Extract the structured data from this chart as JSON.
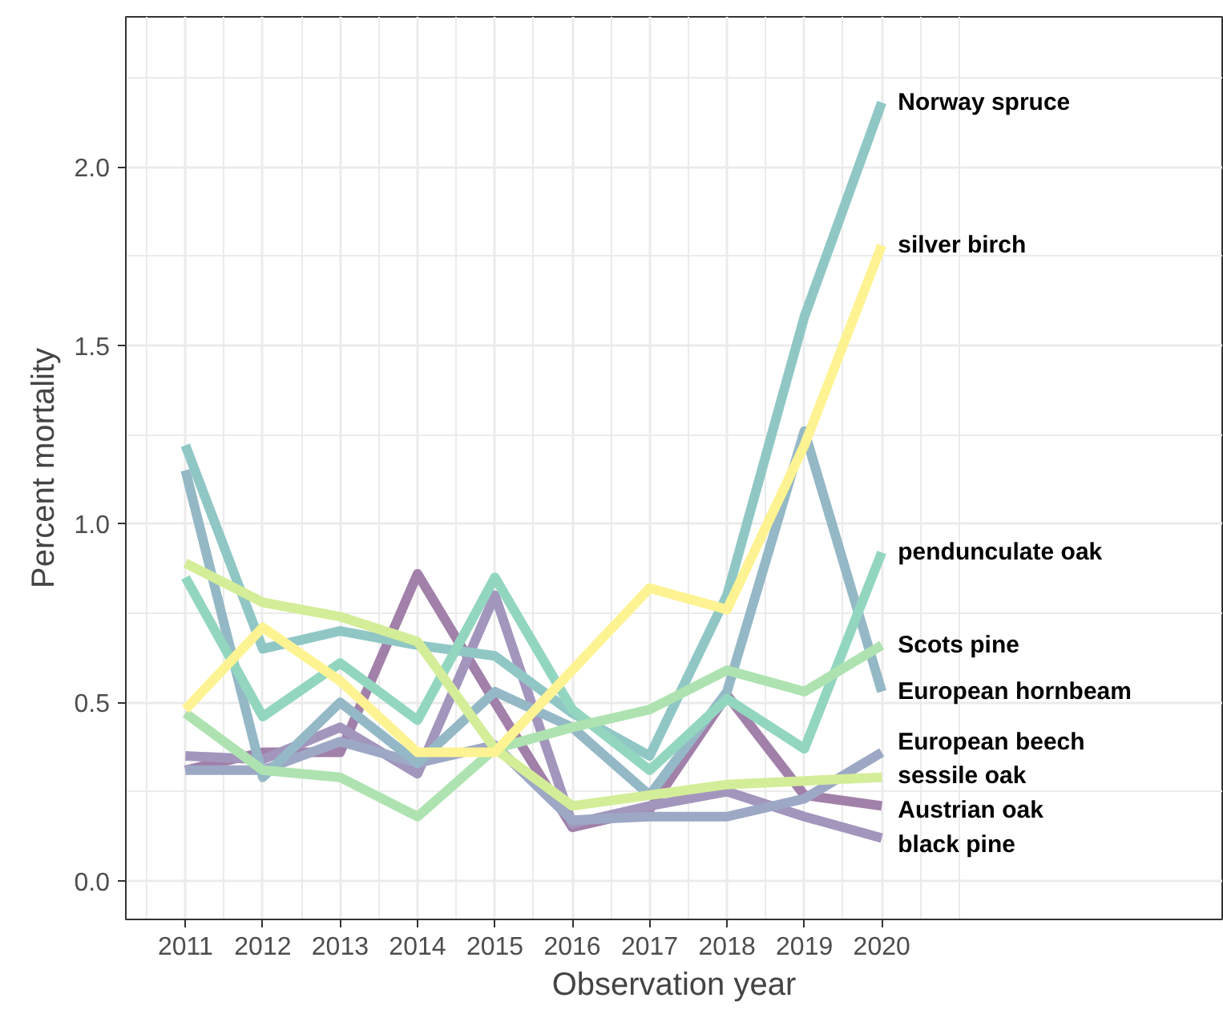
{
  "chart_data": {
    "type": "line",
    "xlabel": "Observation year",
    "ylabel": "Percent mortality",
    "x": [
      2011,
      2012,
      2013,
      2014,
      2015,
      2016,
      2017,
      2018,
      2019,
      2020
    ],
    "xlim": [
      2010.23,
      2024.4
    ],
    "xticks": [
      2011,
      2012,
      2013,
      2014,
      2015,
      2016,
      2017,
      2018,
      2019,
      2020
    ],
    "ylim": [
      -0.108,
      2.42
    ],
    "yticks": [
      {
        "value": 0,
        "label": "0.0"
      },
      {
        "value": 0.5,
        "label": "0.5"
      },
      {
        "value": 1,
        "label": "1.0"
      },
      {
        "value": 1.5,
        "label": "1.5"
      },
      {
        "value": 2,
        "label": "2.0"
      }
    ],
    "grid": true,
    "line_style": "solid",
    "marker": "none",
    "series": [
      {
        "name": "Austrian oak",
        "color": "#a180a9",
        "values": [
          0.31,
          0.36,
          0.36,
          0.86,
          0.5,
          0.15,
          0.2,
          0.52,
          0.24,
          0.21
        ]
      },
      {
        "name": "black pine",
        "color": "#a396bd",
        "values": [
          0.35,
          0.34,
          0.43,
          0.3,
          0.8,
          0.16,
          0.21,
          0.25,
          0.18,
          0.12
        ]
      },
      {
        "name": "European beech",
        "color": "#9da8c5",
        "values": [
          0.31,
          0.31,
          0.39,
          0.33,
          0.38,
          0.17,
          0.18,
          0.18,
          0.23,
          0.36
        ]
      },
      {
        "name": "European hornbeam",
        "color": "#95b8c6",
        "values": [
          1.15,
          0.29,
          0.5,
          0.33,
          0.53,
          0.43,
          0.24,
          0.53,
          1.26,
          0.53
        ]
      },
      {
        "name": "Norway spruce",
        "color": "#90c7c5",
        "values": [
          1.22,
          0.65,
          0.7,
          0.66,
          0.63,
          0.47,
          0.35,
          0.8,
          1.58,
          2.18
        ]
      },
      {
        "name": "pendunculate oak",
        "color": "#93d6c0",
        "values": [
          0.85,
          0.46,
          0.61,
          0.45,
          0.85,
          0.48,
          0.31,
          0.51,
          0.37,
          0.92
        ]
      },
      {
        "name": "Scots pine",
        "color": "#aee3b1",
        "values": [
          0.47,
          0.31,
          0.29,
          0.18,
          0.37,
          0.43,
          0.48,
          0.59,
          0.53,
          0.66
        ]
      },
      {
        "name": "sessile oak",
        "color": "#d4ed98",
        "values": [
          0.89,
          0.78,
          0.74,
          0.67,
          0.37,
          0.21,
          0.24,
          0.27,
          0.28,
          0.29
        ]
      },
      {
        "name": "silver birch",
        "color": "#fef392",
        "values": [
          0.48,
          0.71,
          0.56,
          0.36,
          0.36,
          0.59,
          0.82,
          0.76,
          1.22,
          1.78
        ]
      }
    ]
  }
}
